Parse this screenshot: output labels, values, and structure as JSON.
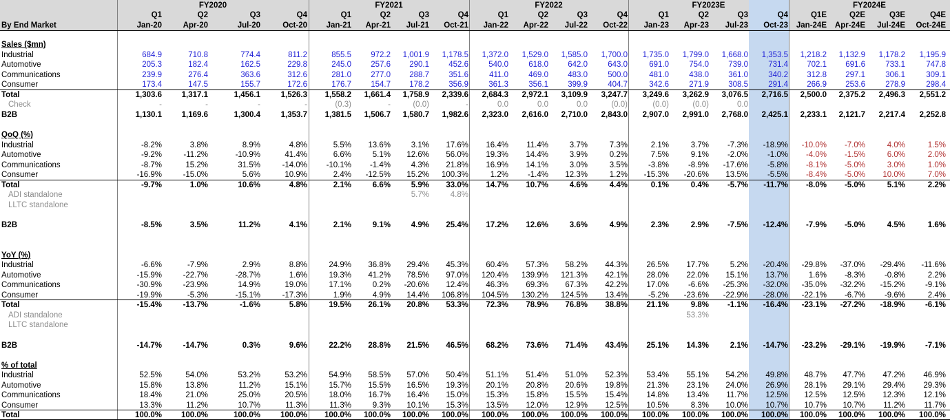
{
  "header": {
    "row_label": "By End Market",
    "years": [
      "FY2020",
      "FY2021",
      "FY2022",
      "FY2023E",
      "FY2024E"
    ],
    "quarters": [
      "Q1",
      "Q2",
      "Q3",
      "Q4",
      "Q1",
      "Q2",
      "Q3",
      "Q4",
      "Q1",
      "Q2",
      "Q3",
      "Q4",
      "Q1",
      "Q2",
      "Q3",
      "Q4",
      "Q1E",
      "Q2E",
      "Q3E",
      "Q4E"
    ],
    "dates": [
      "Jan-20",
      "Apr-20",
      "Jul-20",
      "Oct-20",
      "Jan-21",
      "Apr-21",
      "Jul-21",
      "Oct-21",
      "Jan-22",
      "Apr-22",
      "Jul-22",
      "Oct-22",
      "Jan-23",
      "Apr-23",
      "Jul-23",
      "Oct-23",
      "Jan-24E",
      "Apr-24E",
      "Jul-24E",
      "Oct-24E"
    ]
  },
  "highlight_color": "#c6d9f0",
  "rows": [
    {
      "label": "Sales ($mn)",
      "style": "section",
      "values": []
    },
    {
      "label": "Industrial",
      "style": "blue",
      "values": [
        "684.9",
        "710.8",
        "774.4",
        "811.2",
        "855.5",
        "972.2",
        "1,001.9",
        "1,178.5",
        "1,372.0",
        "1,529.0",
        "1,585.0",
        "1,700.0",
        "1,735.0",
        "1,799.0",
        "1,668.0",
        "1,353.5",
        "1,218.2",
        "1,132.9",
        "1,178.2",
        "1,195.9"
      ]
    },
    {
      "label": "Automotive",
      "style": "blue",
      "values": [
        "205.3",
        "182.4",
        "162.5",
        "229.8",
        "245.0",
        "257.6",
        "290.1",
        "452.6",
        "540.0",
        "618.0",
        "642.0",
        "643.0",
        "691.0",
        "754.0",
        "739.0",
        "731.4",
        "702.1",
        "691.6",
        "733.1",
        "747.8"
      ]
    },
    {
      "label": "Communications",
      "style": "blue",
      "values": [
        "239.9",
        "276.4",
        "363.6",
        "312.6",
        "281.0",
        "277.0",
        "288.7",
        "351.6",
        "411.0",
        "469.0",
        "483.0",
        "500.0",
        "481.0",
        "438.0",
        "361.0",
        "340.2",
        "312.8",
        "297.1",
        "306.1",
        "309.1"
      ]
    },
    {
      "label": "Consumer",
      "style": "blue",
      "values": [
        "173.4",
        "147.5",
        "155.7",
        "172.6",
        "176.7",
        "154.7",
        "178.2",
        "356.9",
        "361.3",
        "356.1",
        "399.9",
        "404.7",
        "342.6",
        "271.9",
        "308.5",
        "291.4",
        "266.9",
        "253.6",
        "278.9",
        "298.4"
      ]
    },
    {
      "label": "Total",
      "style": "total",
      "values": [
        "1,303.6",
        "1,317.1",
        "1,456.1",
        "1,526.3",
        "1,558.2",
        "1,661.4",
        "1,758.9",
        "2,339.6",
        "2,684.3",
        "2,972.1",
        "3,109.9",
        "3,247.7",
        "3,249.6",
        "3,262.9",
        "3,076.5",
        "2,716.5",
        "2,500.0",
        "2,375.2",
        "2,496.3",
        "2,551.2"
      ]
    },
    {
      "label": "Check",
      "style": "check",
      "values": [
        "-",
        "-",
        "-",
        "-",
        "(0.3)",
        "-",
        "(0.0)",
        "-",
        "0.0",
        "0.0",
        "0.0",
        "(0.0)",
        "(0.0)",
        "(0.0)",
        "0.0",
        "",
        "",
        "",
        "",
        ""
      ]
    },
    {
      "label": "B2B",
      "style": "bold",
      "values": [
        "1,130.1",
        "1,169.6",
        "1,300.4",
        "1,353.7",
        "1,381.5",
        "1,506.7",
        "1,580.7",
        "1,982.6",
        "2,323.0",
        "2,616.0",
        "2,710.0",
        "2,843.0",
        "2,907.0",
        "2,991.0",
        "2,768.0",
        "2,425.1",
        "2,233.1",
        "2,121.7",
        "2,217.4",
        "2,252.8"
      ]
    },
    {
      "label": "",
      "style": "blank",
      "values": []
    },
    {
      "label": "QoQ (%)",
      "style": "section",
      "values": []
    },
    {
      "label": "Industrial",
      "style": "normal",
      "values": [
        "-8.2%",
        "3.8%",
        "8.9%",
        "4.8%",
        "5.5%",
        "13.6%",
        "3.1%",
        "17.6%",
        "16.4%",
        "11.4%",
        "3.7%",
        "7.3%",
        "2.1%",
        "3.7%",
        "-7.3%",
        "-18.9%",
        "-10.0%",
        "-7.0%",
        "4.0%",
        "1.5%"
      ]
    },
    {
      "label": "Automotive",
      "style": "normal",
      "values": [
        "-9.2%",
        "-11.2%",
        "-10.9%",
        "41.4%",
        "6.6%",
        "5.1%",
        "12.6%",
        "56.0%",
        "19.3%",
        "14.4%",
        "3.9%",
        "0.2%",
        "7.5%",
        "9.1%",
        "-2.0%",
        "-1.0%",
        "-4.0%",
        "-1.5%",
        "6.0%",
        "2.0%"
      ]
    },
    {
      "label": "Communications",
      "style": "normal",
      "values": [
        "-8.7%",
        "15.2%",
        "31.5%",
        "-14.0%",
        "-10.1%",
        "-1.4%",
        "4.3%",
        "21.8%",
        "16.9%",
        "14.1%",
        "3.0%",
        "3.5%",
        "-3.8%",
        "-8.9%",
        "-17.6%",
        "-5.8%",
        "-8.1%",
        "-5.0%",
        "3.0%",
        "1.0%"
      ]
    },
    {
      "label": "Consumer",
      "style": "normal",
      "values": [
        "-16.9%",
        "-15.0%",
        "5.6%",
        "10.9%",
        "2.4%",
        "-12.5%",
        "15.2%",
        "100.3%",
        "1.2%",
        "-1.4%",
        "12.3%",
        "1.2%",
        "-15.3%",
        "-20.6%",
        "13.5%",
        "-5.5%",
        "-8.4%",
        "-5.0%",
        "10.0%",
        "7.0%"
      ]
    },
    {
      "label": "Total",
      "style": "total",
      "values": [
        "-9.7%",
        "1.0%",
        "10.6%",
        "4.8%",
        "2.1%",
        "6.6%",
        "5.9%",
        "33.0%",
        "14.7%",
        "10.7%",
        "4.6%",
        "4.4%",
        "0.1%",
        "0.4%",
        "-5.7%",
        "-11.7%",
        "-8.0%",
        "-5.0%",
        "5.1%",
        "2.2%"
      ]
    },
    {
      "label": "ADI standalone",
      "style": "sub",
      "values": [
        "",
        "",
        "",
        "",
        "",
        "",
        "5.7%",
        "4.8%",
        "",
        "",
        "",
        "",
        "",
        "",
        "",
        "",
        "",
        "",
        "",
        ""
      ]
    },
    {
      "label": "LLTC standalone",
      "style": "sub",
      "values": []
    },
    {
      "label": "",
      "style": "blank",
      "values": []
    },
    {
      "label": "B2B",
      "style": "bold",
      "values": [
        "-8.5%",
        "3.5%",
        "11.2%",
        "4.1%",
        "2.1%",
        "9.1%",
        "4.9%",
        "25.4%",
        "17.2%",
        "12.6%",
        "3.6%",
        "4.9%",
        "2.3%",
        "2.9%",
        "-7.5%",
        "-12.4%",
        "-7.9%",
        "-5.0%",
        "4.5%",
        "1.6%"
      ]
    },
    {
      "label": "",
      "style": "blank",
      "values": []
    },
    {
      "label": "",
      "style": "blank",
      "values": []
    },
    {
      "label": "YoY (%)",
      "style": "section",
      "values": []
    },
    {
      "label": "Industrial",
      "style": "normal",
      "values": [
        "-6.6%",
        "-7.9%",
        "2.9%",
        "8.8%",
        "24.9%",
        "36.8%",
        "29.4%",
        "45.3%",
        "60.4%",
        "57.3%",
        "58.2%",
        "44.3%",
        "26.5%",
        "17.7%",
        "5.2%",
        "-20.4%",
        "-29.8%",
        "-37.0%",
        "-29.4%",
        "-11.6%"
      ]
    },
    {
      "label": "Automotive",
      "style": "normal",
      "values": [
        "-15.9%",
        "-22.7%",
        "-28.7%",
        "1.6%",
        "19.3%",
        "41.2%",
        "78.5%",
        "97.0%",
        "120.4%",
        "139.9%",
        "121.3%",
        "42.1%",
        "28.0%",
        "22.0%",
        "15.1%",
        "13.7%",
        "1.6%",
        "-8.3%",
        "-0.8%",
        "2.2%"
      ]
    },
    {
      "label": "Communications",
      "style": "normal",
      "values": [
        "-30.9%",
        "-23.9%",
        "14.9%",
        "19.0%",
        "17.1%",
        "0.2%",
        "-20.6%",
        "12.4%",
        "46.3%",
        "69.3%",
        "67.3%",
        "42.2%",
        "17.0%",
        "-6.6%",
        "-25.3%",
        "-32.0%",
        "-35.0%",
        "-32.2%",
        "-15.2%",
        "-9.1%"
      ]
    },
    {
      "label": "Consumer",
      "style": "normal",
      "values": [
        "-19.9%",
        "-5.3%",
        "-15.1%",
        "-17.3%",
        "1.9%",
        "4.9%",
        "14.4%",
        "106.8%",
        "104.5%",
        "130.2%",
        "124.5%",
        "13.4%",
        "-5.2%",
        "-23.6%",
        "-22.9%",
        "-28.0%",
        "-22.1%",
        "-6.7%",
        "-9.6%",
        "2.4%"
      ]
    },
    {
      "label": "Total",
      "style": "total",
      "values": [
        "-15.4%",
        "-13.7%",
        "-1.6%",
        "5.8%",
        "19.5%",
        "26.1%",
        "20.8%",
        "53.3%",
        "72.3%",
        "78.9%",
        "76.8%",
        "38.8%",
        "21.1%",
        "9.8%",
        "-1.1%",
        "-16.4%",
        "-23.1%",
        "-27.2%",
        "-18.9%",
        "-6.1%"
      ]
    },
    {
      "label": "ADI standalone",
      "style": "sub",
      "values": [
        "",
        "",
        "",
        "",
        "",
        "",
        "",
        "",
        "",
        "",
        "",
        "",
        "",
        "53.3%",
        "",
        "",
        "",
        "",
        "",
        ""
      ]
    },
    {
      "label": "LLTC standalone",
      "style": "sub",
      "values": []
    },
    {
      "label": "",
      "style": "blank",
      "values": []
    },
    {
      "label": "B2B",
      "style": "bold",
      "values": [
        "-14.7%",
        "-14.7%",
        "0.3%",
        "9.6%",
        "22.2%",
        "28.8%",
        "21.5%",
        "46.5%",
        "68.2%",
        "73.6%",
        "71.4%",
        "43.4%",
        "25.1%",
        "14.3%",
        "2.1%",
        "-14.7%",
        "-23.2%",
        "-29.1%",
        "-19.9%",
        "-7.1%"
      ]
    },
    {
      "label": "",
      "style": "blank",
      "values": []
    },
    {
      "label": "% of total",
      "style": "section",
      "values": []
    },
    {
      "label": "Industrial",
      "style": "normal",
      "values": [
        "52.5%",
        "54.0%",
        "53.2%",
        "53.2%",
        "54.9%",
        "58.5%",
        "57.0%",
        "50.4%",
        "51.1%",
        "51.4%",
        "51.0%",
        "52.3%",
        "53.4%",
        "55.1%",
        "54.2%",
        "49.8%",
        "48.7%",
        "47.7%",
        "47.2%",
        "46.9%"
      ]
    },
    {
      "label": "Automotive",
      "style": "normal",
      "values": [
        "15.8%",
        "13.8%",
        "11.2%",
        "15.1%",
        "15.7%",
        "15.5%",
        "16.5%",
        "19.3%",
        "20.1%",
        "20.8%",
        "20.6%",
        "19.8%",
        "21.3%",
        "23.1%",
        "24.0%",
        "26.9%",
        "28.1%",
        "29.1%",
        "29.4%",
        "29.3%"
      ]
    },
    {
      "label": "Communications",
      "style": "normal",
      "values": [
        "18.4%",
        "21.0%",
        "25.0%",
        "20.5%",
        "18.0%",
        "16.7%",
        "16.4%",
        "15.0%",
        "15.3%",
        "15.8%",
        "15.5%",
        "15.4%",
        "14.8%",
        "13.4%",
        "11.7%",
        "12.5%",
        "12.5%",
        "12.5%",
        "12.3%",
        "12.1%"
      ]
    },
    {
      "label": "Consumer",
      "style": "normal",
      "values": [
        "13.3%",
        "11.2%",
        "10.7%",
        "11.3%",
        "11.3%",
        "9.3%",
        "10.1%",
        "15.3%",
        "13.5%",
        "12.0%",
        "12.9%",
        "12.5%",
        "10.5%",
        "8.3%",
        "10.0%",
        "10.7%",
        "10.7%",
        "10.7%",
        "11.2%",
        "11.7%"
      ]
    },
    {
      "label": "Total",
      "style": "total",
      "values": [
        "100.0%",
        "100.0%",
        "100.0%",
        "100.0%",
        "100.0%",
        "100.0%",
        "100.0%",
        "100.0%",
        "100.0%",
        "100.0%",
        "100.0%",
        "100.0%",
        "100.0%",
        "100.0%",
        "100.0%",
        "100.0%",
        "100.0%",
        "100.0%",
        "100.0%",
        "100.0%"
      ]
    }
  ]
}
